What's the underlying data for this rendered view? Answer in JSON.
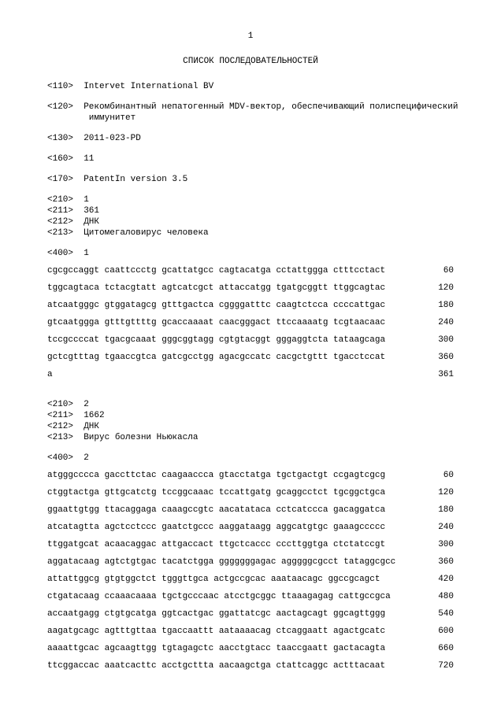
{
  "page_number": "1",
  "title": "СПИСОК ПОСЛЕДОВАТЕЛЬНОСТЕЙ",
  "header_fields": [
    {
      "tag": "<110>",
      "value": "Intervet International BV"
    },
    {
      "tag": "<120>",
      "value": "Рекомбинантный непатогенный MDV-вектор, обеспечивающий полиспецифический\n        иммунитет"
    },
    {
      "tag": "<130>",
      "value": "2011-023-PD"
    },
    {
      "tag": "<160>",
      "value": "11"
    },
    {
      "tag": "<170>",
      "value": "PatentIn version 3.5"
    }
  ],
  "sequences": [
    {
      "meta": [
        {
          "tag": "<210>",
          "value": "1"
        },
        {
          "tag": "<211>",
          "value": "361"
        },
        {
          "tag": "<212>",
          "value": "ДНК"
        },
        {
          "tag": "<213>",
          "value": "Цитомегаловирус человека"
        }
      ],
      "seq_tag": "<400>  1",
      "rows": [
        {
          "text": "cgcgccaggt caattccctg gcattatgcc cagtacatga cctattggga ctttcctact",
          "pos": "60"
        },
        {
          "text": "tggcagtaca tctacgtatt agtcatcgct attaccatgg tgatgcggtt ttggcagtac",
          "pos": "120"
        },
        {
          "text": "atcaatgggc gtggatagcg gtttgactca cggggatttc caagtctcca ccccattgac",
          "pos": "180"
        },
        {
          "text": "gtcaatggga gtttgttttg gcaccaaaat caacgggact ttccaaaatg tcgtaacaac",
          "pos": "240"
        },
        {
          "text": "tccgccccat tgacgcaaat gggcggtagg cgtgtacggt gggaggtcta tataagcaga",
          "pos": "300"
        },
        {
          "text": "gctcgtttag tgaaccgtca gatcgcctgg agacgccatc cacgctgttt tgacctccat",
          "pos": "360"
        },
        {
          "text": "a",
          "pos": "361"
        }
      ]
    },
    {
      "meta": [
        {
          "tag": "<210>",
          "value": "2"
        },
        {
          "tag": "<211>",
          "value": "1662"
        },
        {
          "tag": "<212>",
          "value": "ДНК"
        },
        {
          "tag": "<213>",
          "value": "Вирус болезни Ньюкасла"
        }
      ],
      "seq_tag": "<400>  2",
      "rows": [
        {
          "text": "atgggcccca gaccttctac caagaaccca gtacctatga tgctgactgt ccgagtcgcg",
          "pos": "60"
        },
        {
          "text": "ctggtactga gttgcatctg tccggcaaac tccattgatg gcaggcctct tgcggctgca",
          "pos": "120"
        },
        {
          "text": "ggaattgtgg ttacaggaga caaagccgtc aacatataca cctcatccca gacaggatca",
          "pos": "180"
        },
        {
          "text": "atcatagtta agctcctccc gaatctgccc aaggataagg aggcatgtgc gaaagccccc",
          "pos": "240"
        },
        {
          "text": "ttggatgcat acaacaggac attgaccact ttgctcaccc cccttggtga ctctatccgt",
          "pos": "300"
        },
        {
          "text": "aggatacaag agtctgtgac tacatctgga gggggggagac agggggcgcct tataggcgcc",
          "pos": "360"
        },
        {
          "text": "attattggcg gtgtggctct tgggttgca actgccgcac aaataacagc ggccgcagct",
          "pos": "420"
        },
        {
          "text": "ctgatacaag ccaaacaaaa tgctgcccaac atcctgcggc ttaaagagag cattgccgca",
          "pos": "480"
        },
        {
          "text": "accaatgagg ctgtgcatga ggtcactgac ggattatcgc aactagcagt ggcagttggg",
          "pos": "540"
        },
        {
          "text": "aagatgcagc agtttgttaa tgaccaattt aataaaacag ctcaggaatt agactgcatc",
          "pos": "600"
        },
        {
          "text": "aaaattgcac agcaagttgg tgtagagctc aacctgtacc taaccgaatt gactacagta",
          "pos": "660"
        },
        {
          "text": "ttcggaccac aaatcacttc acctgcttta aacaagctga ctattcaggc actttacaat",
          "pos": "720"
        }
      ]
    }
  ]
}
